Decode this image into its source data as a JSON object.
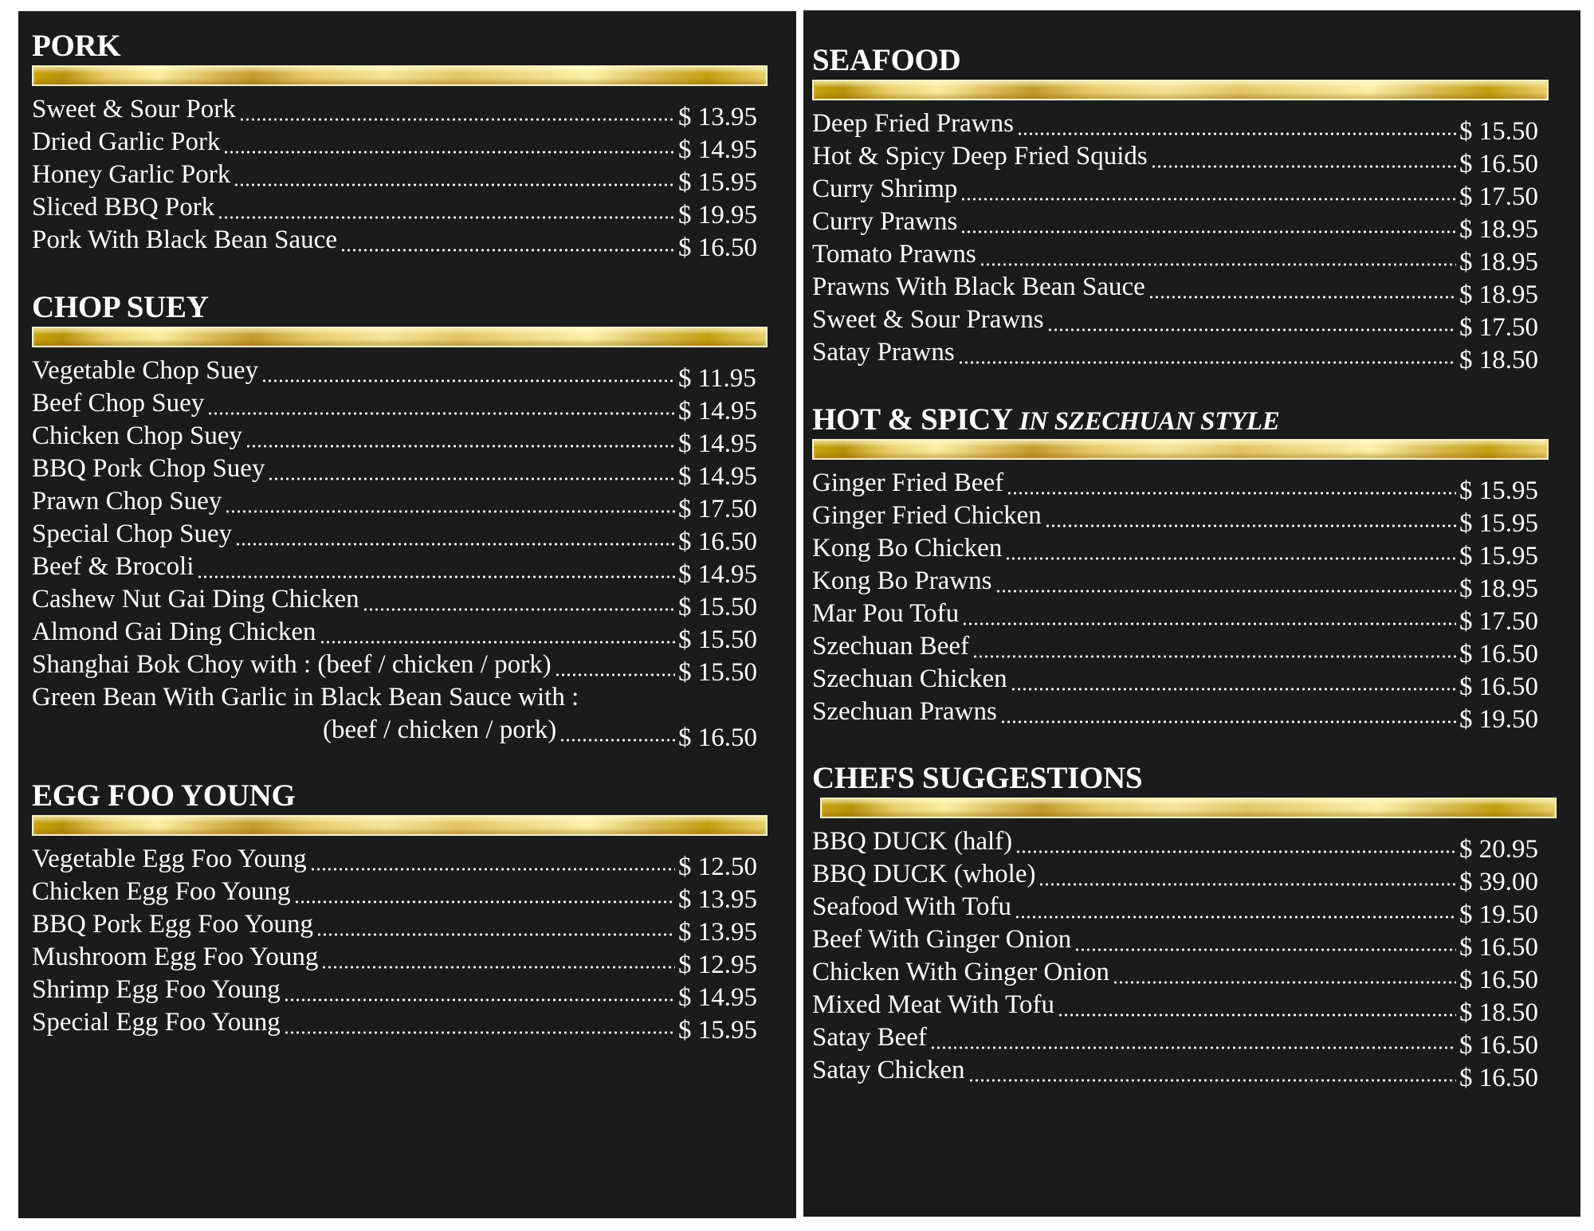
{
  "colors": {
    "background": "#1b1b1b",
    "text": "#ffffff",
    "gold": "#d4b040"
  },
  "left": [
    {
      "title": "PORK",
      "items": [
        {
          "name": "Sweet & Sour Pork",
          "price": "$ 13.95"
        },
        {
          "name": "Dried Garlic Pork",
          "price": "$ 14.95"
        },
        {
          "name": "Honey Garlic Pork",
          "price": "$ 15.95"
        },
        {
          "name": "Sliced BBQ Pork",
          "price": "$ 19.95"
        },
        {
          "name": "Pork With Black Bean Sauce",
          "price": "$ 16.50"
        }
      ]
    },
    {
      "title": "CHOP SUEY",
      "items": [
        {
          "name": "Vegetable Chop Suey",
          "price": "$ 11.95"
        },
        {
          "name": "Beef Chop Suey",
          "price": "$ 14.95"
        },
        {
          "name": "Chicken Chop Suey",
          "price": "$ 14.95"
        },
        {
          "name": "BBQ Pork Chop Suey",
          "price": "$ 14.95"
        },
        {
          "name": "Prawn Chop Suey",
          "price": "$ 17.50"
        },
        {
          "name": "Special Chop Suey",
          "price": "$ 16.50"
        },
        {
          "name": "Beef & Brocoli",
          "price": "$ 14.95"
        },
        {
          "name": "Cashew Nut Gai Ding Chicken",
          "price": "$ 15.50"
        },
        {
          "name": "Almond Gai Ding Chicken",
          "price": "$ 15.50"
        },
        {
          "name": "Shanghai Bok Choy with : (beef / chicken / pork)",
          "price": "$ 15.50"
        },
        {
          "name": "Green Bean With Garlic in Black Bean Sauce with :",
          "name2": "(beef / chicken / pork)",
          "price": "$ 16.50"
        }
      ]
    },
    {
      "title": "EGG FOO YOUNG",
      "items": [
        {
          "name": "Vegetable Egg Foo Young",
          "price": "$ 12.50"
        },
        {
          "name": "Chicken Egg Foo Young",
          "price": "$ 13.95"
        },
        {
          "name": "BBQ Pork Egg Foo Young",
          "price": "$ 13.95"
        },
        {
          "name": "Mushroom Egg Foo Young",
          "price": "$ 12.95"
        },
        {
          "name": "Shrimp Egg Foo Young",
          "price": "$ 14.95"
        },
        {
          "name": "Special Egg Foo Young",
          "price": "$ 15.95"
        }
      ]
    }
  ],
  "right": [
    {
      "title": "SEAFOOD",
      "items": [
        {
          "name": "Deep Fried Prawns",
          "price": "$ 15.50"
        },
        {
          "name": "Hot & Spicy Deep Fried Squids",
          "price": "$ 16.50"
        },
        {
          "name": "Curry Shrimp",
          "price": "$ 17.50"
        },
        {
          "name": "Curry Prawns",
          "price": "$ 18.95"
        },
        {
          "name": "Tomato Prawns",
          "price": "$ 18.95"
        },
        {
          "name": "Prawns With Black Bean Sauce",
          "price": "$ 18.95"
        },
        {
          "name": "Sweet & Sour Prawns",
          "price": "$ 17.50"
        },
        {
          "name": "Satay Prawns",
          "price": "$ 18.50"
        }
      ]
    },
    {
      "title": "HOT & SPICY",
      "subtitle": "IN SZECHUAN STYLE",
      "items": [
        {
          "name": "Ginger Fried Beef",
          "price": "$ 15.95"
        },
        {
          "name": "Ginger Fried Chicken",
          "price": "$ 15.95"
        },
        {
          "name": "Kong Bo Chicken",
          "price": "$ 15.95"
        },
        {
          "name": "Kong Bo Prawns",
          "price": "$ 18.95"
        },
        {
          "name": "Mar Pou Tofu",
          "price": "$ 17.50"
        },
        {
          "name": "Szechuan Beef",
          "price": "$ 16.50"
        },
        {
          "name": "Szechuan Chicken",
          "price": "$ 16.50"
        },
        {
          "name": "Szechuan Prawns",
          "price": "$ 19.50"
        }
      ]
    },
    {
      "title": "CHEFS SUGGESTIONS",
      "items": [
        {
          "name": "BBQ DUCK (half)",
          "price": "$ 20.95"
        },
        {
          "name": "BBQ DUCK (whole)",
          "price": "$ 39.00"
        },
        {
          "name": "Seafood With Tofu",
          "price": "$ 19.50"
        },
        {
          "name": "Beef With Ginger Onion",
          "price": "$ 16.50"
        },
        {
          "name": "Chicken With Ginger Onion",
          "price": "$ 16.50"
        },
        {
          "name": "Mixed Meat With Tofu",
          "price": "$ 18.50"
        },
        {
          "name": "Satay Beef",
          "price": "$ 16.50"
        },
        {
          "name": "Satay Chicken",
          "price": "$ 16.50"
        }
      ]
    }
  ]
}
